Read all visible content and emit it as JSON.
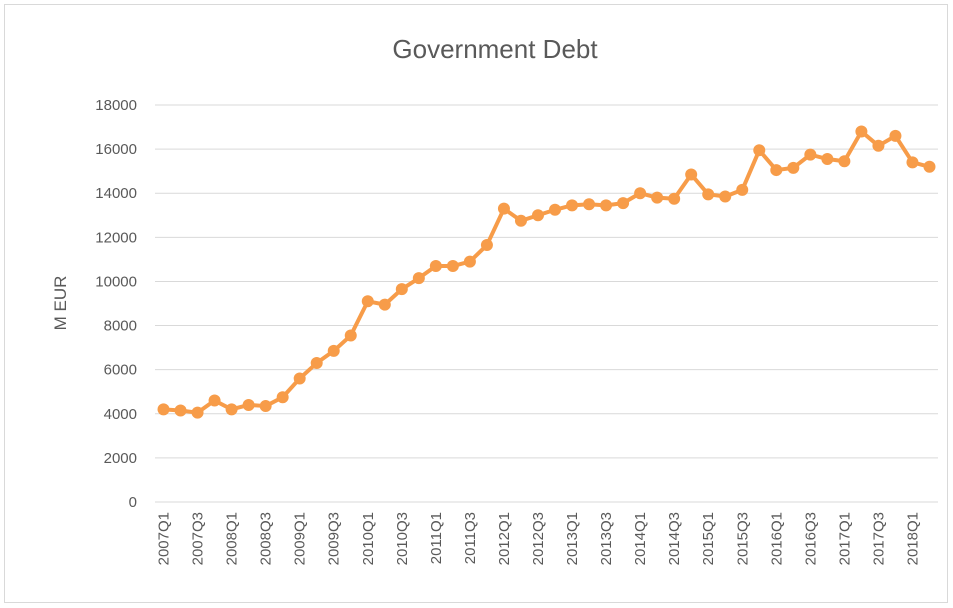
{
  "chart_data": {
    "type": "line",
    "title": "Government Debt",
    "y_label": "M EUR",
    "categories": [
      "2007Q1",
      null,
      "2007Q3",
      null,
      "2008Q1",
      null,
      "2008Q3",
      null,
      "2009Q1",
      null,
      "2009Q3",
      null,
      "2010Q1",
      null,
      "2010Q3",
      null,
      "2011Q1",
      null,
      "2011Q3",
      null,
      "2012Q1",
      null,
      "2012Q3",
      null,
      "2013Q1",
      null,
      "2013Q3",
      null,
      "2014Q1",
      null,
      "2014Q3",
      null,
      "2015Q1",
      null,
      "2015Q3",
      null,
      "2016Q1",
      null,
      "2016Q3",
      null,
      "2017Q1",
      null,
      "2017Q3",
      null,
      "2018Q1",
      null
    ],
    "series": [
      {
        "name": "Government Debt",
        "color": "#f79c49",
        "values": [
          4200,
          4150,
          4050,
          4600,
          4200,
          4400,
          4350,
          4750,
          5600,
          6300,
          6850,
          7550,
          9100,
          8950,
          9650,
          10150,
          10700,
          10700,
          10900,
          11650,
          13300,
          12750,
          13000,
          13250,
          13450,
          13500,
          13450,
          13550,
          14000,
          13800,
          13750,
          14850,
          13950,
          13850,
          14150,
          15950,
          15050,
          15150,
          15750,
          15550,
          15450,
          16800,
          16150,
          16600,
          15400,
          15200
        ]
      }
    ],
    "ylim": [
      0,
      18000
    ],
    "yticks": [
      0,
      2000,
      4000,
      6000,
      8000,
      10000,
      12000,
      14000,
      16000,
      18000
    ],
    "grid": true
  }
}
